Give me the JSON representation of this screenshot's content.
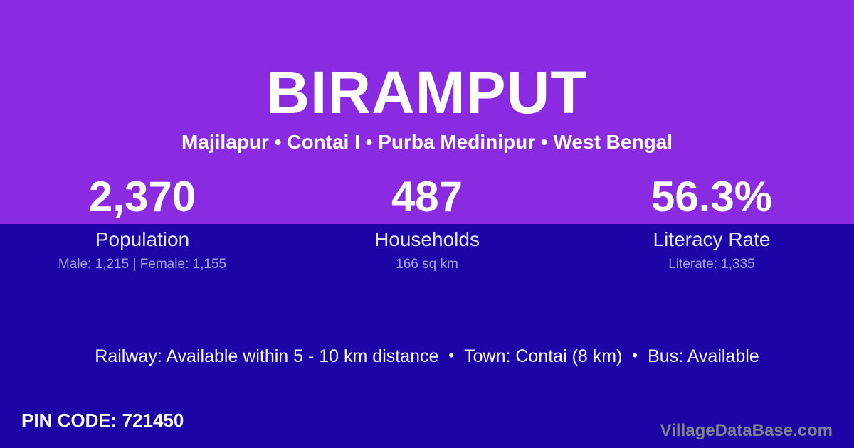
{
  "colors": {
    "top_band": "#8a2be2",
    "bottom_band": "#1c04a6",
    "watermark_text": "#83828e"
  },
  "header": {
    "village_name": "BIRAMPUT",
    "breadcrumb": "Majilapur • Contai I • Purba Medinipur • West Bengal"
  },
  "stats": [
    {
      "value": "2,370",
      "label": "Population",
      "detail": "Male: 1,215 | Female: 1,155"
    },
    {
      "value": "487",
      "label": "Households",
      "detail": "166 sq km"
    },
    {
      "value": "56.3%",
      "label": "Literacy Rate",
      "detail": "Literate: 1,335"
    }
  ],
  "transport": {
    "railway": "Railway: Available within 5 - 10 km distance",
    "separator": "•",
    "town": "Town: Contai (8 km)",
    "bus": "Bus: Available"
  },
  "footer": {
    "pin_code": "PIN CODE: 721450",
    "watermark": "VillageDataBase.com"
  }
}
